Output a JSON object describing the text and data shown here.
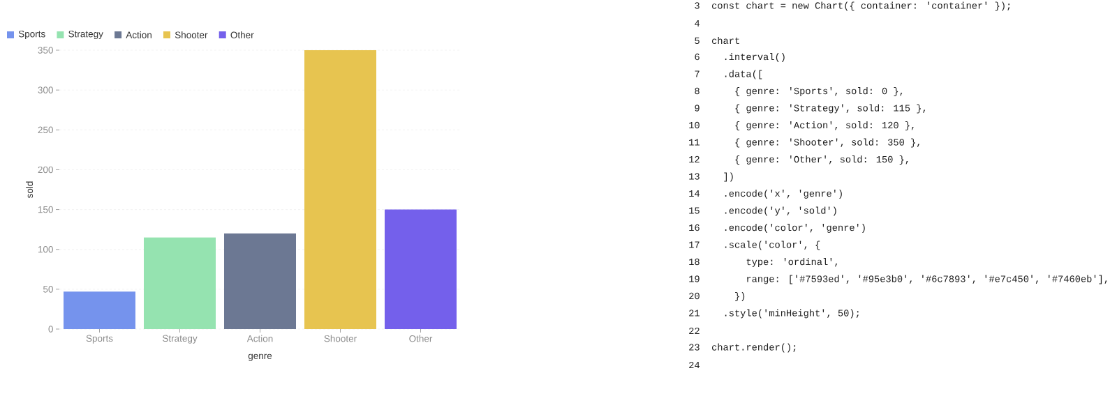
{
  "chart_data": [
    {
      "type": "bar",
      "xlabel": "genre",
      "ylabel": "sold",
      "categories": [
        "Sports",
        "Strategy",
        "Action",
        "Shooter",
        "Other"
      ],
      "series": [
        {
          "name": "Sports",
          "color": "#7593ed",
          "values": [
            47,
            null,
            null,
            null,
            null
          ]
        },
        {
          "name": "Strategy",
          "color": "#95e3b0",
          "values": [
            null,
            115,
            null,
            null,
            null
          ]
        },
        {
          "name": "Action",
          "color": "#6c7893",
          "values": [
            null,
            null,
            120,
            null,
            null
          ]
        },
        {
          "name": "Shooter",
          "color": "#e7c450",
          "values": [
            null,
            null,
            null,
            350,
            null
          ]
        },
        {
          "name": "Other",
          "color": "#7460eb",
          "values": [
            null,
            null,
            null,
            null,
            150
          ]
        }
      ],
      "ylim": [
        0,
        350
      ],
      "yticks": [
        0,
        50,
        100,
        150,
        200,
        250,
        300,
        350
      ],
      "grid": "y",
      "legend": "top left"
    },
    {
      "type": "other",
      "annotations": [
        " 3  const chart = new Chart({ container: 'container' });",
        " 4",
        " 5  chart",
        " 6    .interval()",
        " 7    .data([",
        " 8      { genre: 'Sports', sold: 0 },",
        " 9      { genre: 'Strategy', sold: 115 },",
        "10      { genre: 'Action', sold: 120 },",
        "11      { genre: 'Shooter', sold: 350 },",
        "12      { genre: 'Other', sold: 150 },",
        "13    ])",
        "14    .encode('x', 'genre')",
        "15    .encode('y', 'sold')",
        "16    .encode('color', 'genre')",
        "17    .scale('color', {",
        "18        type: 'ordinal',",
        "19        range: ['#7593ed', '#95e3b0', '#6c7893', '#e7c450', '#7460eb'],",
        "20      })",
        "21    .style('minHeight', 50);",
        "22",
        "23  chart.render();",
        "24"
      ]
    }
  ]
}
